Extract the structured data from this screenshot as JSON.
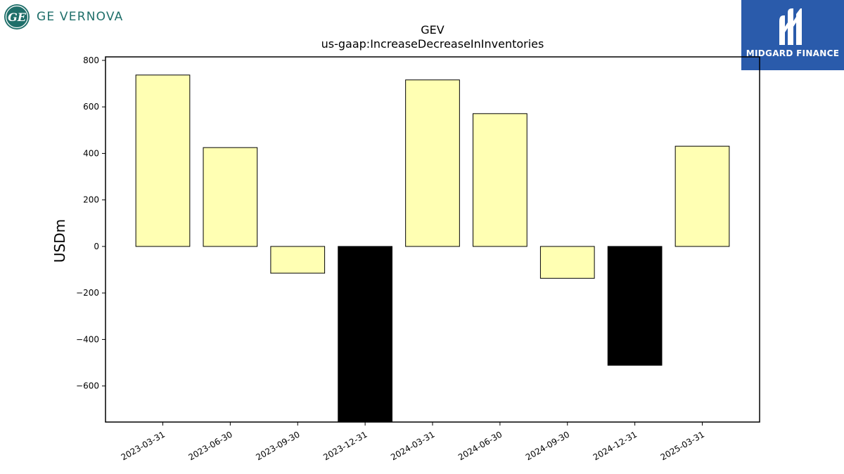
{
  "brand_left": {
    "name": "GE VERNOVA",
    "icon": "ge-monogram-icon",
    "color": "#1f6f6a"
  },
  "brand_right": {
    "name": "MIDGARD FINANCE",
    "icon": "midgard-m-icon",
    "background": "#2a5bab"
  },
  "chart_data": {
    "type": "bar",
    "title": "GEV",
    "subtitle": "us-gaap:IncreaseDecreaseInInventories",
    "xlabel": "",
    "ylabel": "USDm",
    "categories": [
      "2023-03-31",
      "2023-06-30",
      "2023-09-30",
      "2023-12-31",
      "2024-03-31",
      "2024-06-30",
      "2024-09-30",
      "2024-12-31",
      "2025-03-31"
    ],
    "values": [
      737,
      425,
      -115,
      -780,
      716,
      571,
      -137,
      -511,
      431
    ],
    "bar_colors": [
      "#ffffb3",
      "#ffffb3",
      "#ffffb3",
      "#000000",
      "#ffffb3",
      "#ffffb3",
      "#ffffb3",
      "#000000",
      "#ffffb3"
    ],
    "yticks": [
      -600,
      -400,
      -200,
      0,
      200,
      400,
      600,
      800
    ],
    "ytick_labels": [
      "−600",
      "−400",
      "−200",
      "0",
      "200",
      "400",
      "600",
      "800"
    ],
    "ylim": [
      -755,
      815
    ],
    "grid": false,
    "legend": "none"
  }
}
